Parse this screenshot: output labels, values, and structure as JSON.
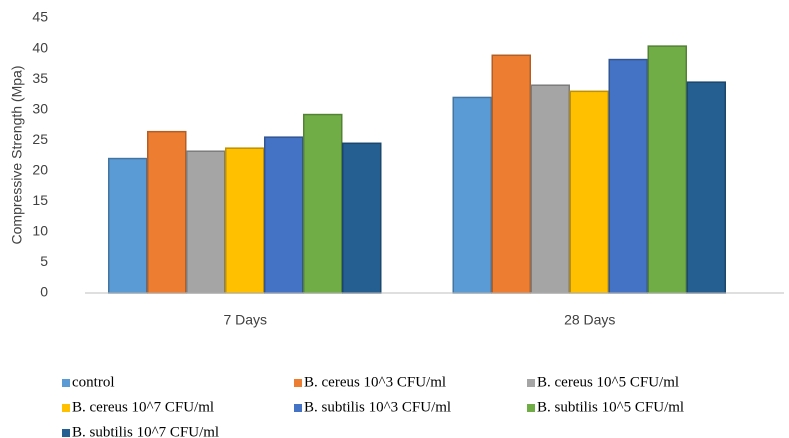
{
  "chart_data": {
    "type": "bar",
    "y_label": "Compressive Strength (Mpa)",
    "categories": [
      "7 Days",
      "28 Days"
    ],
    "series": [
      {
        "name": "control",
        "color": "#5b9bd5",
        "values": [
          22,
          32
        ]
      },
      {
        "name": "B. cereus 10^3 CFU/ml",
        "color": "#ed7d31",
        "values": [
          26.4,
          38.9
        ]
      },
      {
        "name": "B. cereus 10^5 CFU/ml",
        "color": "#a5a5a5",
        "values": [
          23.2,
          34
        ]
      },
      {
        "name": "B. cereus 10^7 CFU/ml",
        "color": "#ffc000",
        "values": [
          23.7,
          33
        ]
      },
      {
        "name": "B. subtilis 10^3 CFU/ml",
        "color": "#4472c4",
        "values": [
          25.5,
          38.2
        ]
      },
      {
        "name": "B. subtilis 10^5 CFU/ml",
        "color": "#70ad47",
        "values": [
          29.2,
          40.4
        ]
      },
      {
        "name": "B. subtilis 10^7 CFU/ml",
        "color": "#255e91",
        "values": [
          24.5,
          34.5
        ]
      }
    ],
    "ylim": [
      0,
      45
    ],
    "yticks": [
      0,
      5,
      10,
      15,
      20,
      25,
      30,
      35,
      40,
      45
    ],
    "grid": false,
    "legend": "bottom"
  }
}
